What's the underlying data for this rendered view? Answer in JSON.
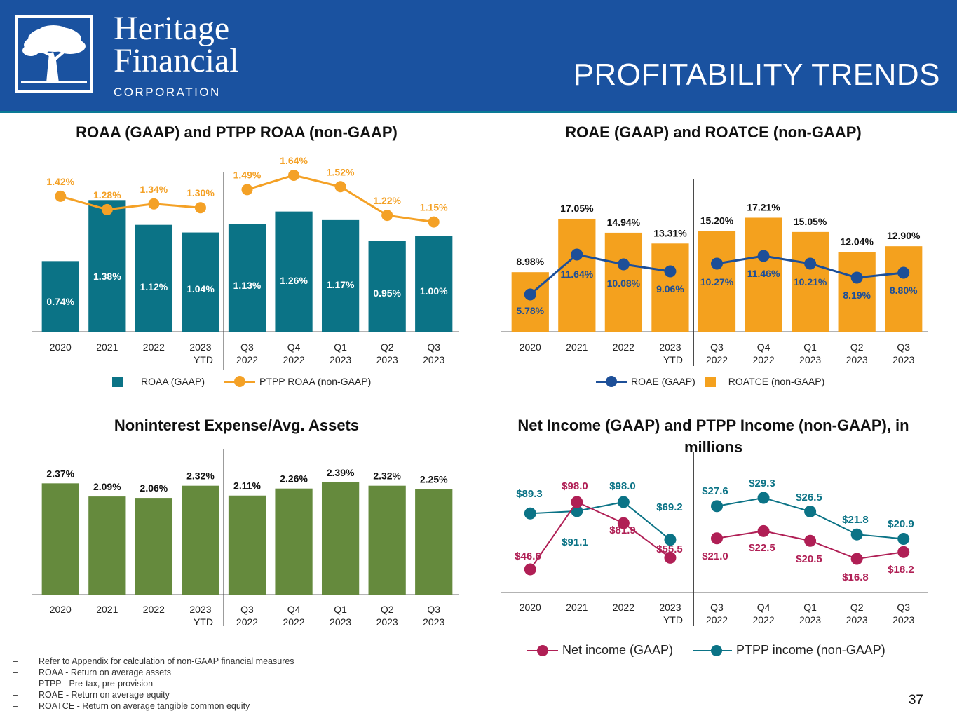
{
  "header": {
    "logo": {
      "line1": "Heritage",
      "line2": "Financial",
      "line3": "CORPORATION",
      "icon": "oak-tree-icon"
    },
    "title": "PROFITABILITY TRENDS",
    "bg_color": "#1a52a0"
  },
  "categories": [
    [
      "2020"
    ],
    [
      "2021"
    ],
    [
      "2022"
    ],
    [
      "2023",
      "YTD"
    ],
    [
      "Q3",
      "2022"
    ],
    [
      "Q4",
      "2022"
    ],
    [
      "Q1",
      "2023"
    ],
    [
      "Q2",
      "2023"
    ],
    [
      "Q3",
      "2023"
    ]
  ],
  "chart_data": [
    {
      "id": "roaa",
      "type": "bar",
      "title": "ROAA (GAAP) and PTPP ROAA (non-GAAP)",
      "categories": [
        "2020",
        "2021",
        "2022",
        "2023 YTD",
        "Q3 2022",
        "Q4 2022",
        "Q1 2023",
        "Q2 2023",
        "Q3 2023"
      ],
      "series": [
        {
          "name": "ROAA (GAAP)",
          "type": "bar",
          "color": "#0b7386",
          "values": [
            0.74,
            1.38,
            1.12,
            1.04,
            1.13,
            1.26,
            1.17,
            0.95,
            1.0
          ],
          "labels": [
            "0.74%",
            "1.38%",
            "1.12%",
            "1.04%",
            "1.13%",
            "1.26%",
            "1.17%",
            "0.95%",
            "1.00%"
          ],
          "label_color": "#ffffff"
        },
        {
          "name": "PTPP ROAA (non-GAAP)",
          "type": "line",
          "color": "#f4a126",
          "values": [
            1.42,
            1.28,
            1.34,
            1.3,
            1.49,
            1.64,
            1.52,
            1.22,
            1.15
          ],
          "labels": [
            "1.42%",
            "1.28%",
            "1.34%",
            "1.30%",
            "1.49%",
            "1.64%",
            "1.52%",
            "1.22%",
            "1.15%"
          ],
          "label_color": "#f4a126"
        }
      ],
      "divider_after_index": 3,
      "legend_placement": "bottom-center",
      "grid": false,
      "ylim": [
        0,
        1.75
      ]
    },
    {
      "id": "roae",
      "type": "bar",
      "title": "ROAE (GAAP) and ROATCE (non-GAAP)",
      "categories": [
        "2020",
        "2021",
        "2022",
        "2023 YTD",
        "Q3 2022",
        "Q4 2022",
        "Q1 2023",
        "Q2 2023",
        "Q3 2023"
      ],
      "series": [
        {
          "name": "ROATCE (non-GAAP)",
          "type": "bar",
          "color": "#f4a11e",
          "values": [
            8.98,
            17.05,
            14.94,
            13.31,
            15.2,
            17.21,
            15.05,
            12.04,
            12.9
          ],
          "labels": [
            "8.98%",
            "17.05%",
            "14.94%",
            "13.31%",
            "15.20%",
            "17.21%",
            "15.05%",
            "12.04%",
            "12.90%"
          ],
          "label_color": "#111111"
        },
        {
          "name": "ROAE (GAAP)",
          "type": "line",
          "color": "#1d4f98",
          "values": [
            5.78,
            11.64,
            10.08,
            9.06,
            10.27,
            11.46,
            10.21,
            8.19,
            8.8
          ],
          "labels": [
            "5.78%",
            "11.64%",
            "10.08%",
            "9.06%",
            "10.27%",
            "11.46%",
            "10.21%",
            "8.19%",
            "8.80%"
          ],
          "label_color": "#1d4f98"
        }
      ],
      "legend": [
        "ROAE (GAAP)",
        "ROATCE (non-GAAP)"
      ],
      "divider_after_index": 3,
      "legend_placement": "bottom-center",
      "grid": false,
      "ylim": [
        0,
        18
      ]
    },
    {
      "id": "nie",
      "type": "bar",
      "title": "Noninterest Expense/Avg. Assets",
      "categories": [
        "2020",
        "2021",
        "2022",
        "2023 YTD",
        "Q3 2022",
        "Q4 2022",
        "Q1 2023",
        "Q2 2023",
        "Q3 2023"
      ],
      "series": [
        {
          "name": "Noninterest Expense/Avg. Assets",
          "type": "bar",
          "color": "#658a3d",
          "values": [
            2.37,
            2.09,
            2.06,
            2.32,
            2.11,
            2.26,
            2.39,
            2.32,
            2.25
          ],
          "labels": [
            "2.37%",
            "2.09%",
            "2.06%",
            "2.32%",
            "2.11%",
            "2.26%",
            "2.39%",
            "2.32%",
            "2.25%"
          ],
          "label_color": "#111111"
        }
      ],
      "divider_after_index": 3,
      "legend_placement": "none",
      "grid": false,
      "ylim": [
        0,
        2.5
      ]
    },
    {
      "id": "income",
      "type": "line",
      "title": "Net Income (GAAP) and PTPP Income (non-GAAP), in millions",
      "categories": [
        "2020",
        "2021",
        "2022",
        "2023 YTD",
        "Q3 2022",
        "Q4 2022",
        "Q1 2023",
        "Q2 2023",
        "Q3 2023"
      ],
      "series": [
        {
          "name": "Net income (GAAP)",
          "type": "line",
          "color": "#b01f55",
          "values": [
            46.6,
            98.0,
            81.9,
            55.5,
            21.0,
            22.5,
            20.5,
            16.8,
            18.2
          ],
          "labels": [
            "$46.6",
            "$98.0",
            "$81.9",
            "$55.5",
            "$21.0",
            "$22.5",
            "$20.5",
            "$16.8",
            "$18.2"
          ]
        },
        {
          "name": "PTPP income (non-GAAP)",
          "type": "line",
          "color": "#0b7386",
          "values": [
            89.3,
            91.1,
            98.0,
            69.2,
            27.6,
            29.3,
            26.5,
            21.8,
            20.9
          ],
          "labels": [
            "$89.3",
            "$91.1",
            "$98.0",
            "$69.2",
            "$27.6",
            "$29.3",
            "$26.5",
            "$21.8",
            "$20.9"
          ]
        }
      ],
      "annual_ylim": [
        0,
        160
      ],
      "quarterly_ylim": [
        0,
        50
      ],
      "divider_after_index": 3,
      "legend_placement": "bottom-center",
      "grid": false
    }
  ],
  "footnotes": [
    "Refer to Appendix for calculation of non-GAAP financial measures",
    "ROAA - Return on average assets",
    "PTPP - Pre-tax, pre-provision",
    "ROAE - Return on average equity",
    "ROATCE - Return on average tangible common equity"
  ],
  "footnote_bullet": "–",
  "page_number": "37"
}
